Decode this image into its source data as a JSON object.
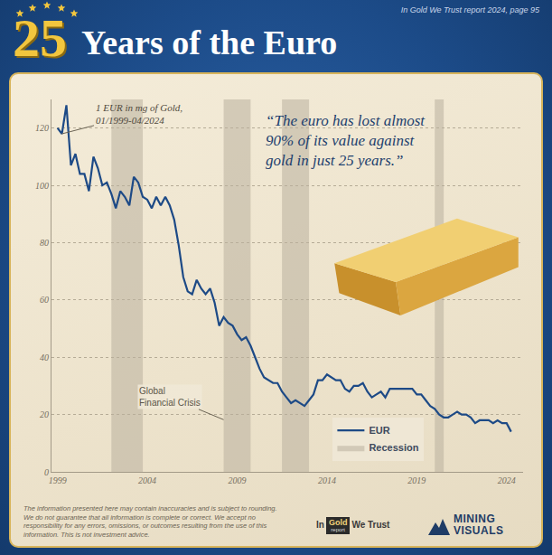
{
  "header": {
    "number": "25",
    "title": "Years of the Euro",
    "source": "In Gold We Trust report 2024, page 95"
  },
  "chart_data": {
    "type": "line",
    "annotations": {
      "series_note": "1 EUR in mg of Gold, 01/1999-04/2024",
      "quote": "“The euro has lost almost 90% of its value against gold in just 25 years.”",
      "event": "Global Financial Crisis"
    },
    "x": [
      "1999-01",
      "1999-04",
      "1999-07",
      "1999-10",
      "2000-01",
      "2000-04",
      "2000-07",
      "2000-10",
      "2001-01",
      "2001-04",
      "2001-07",
      "2001-10",
      "2002-01",
      "2002-04",
      "2002-07",
      "2002-10",
      "2003-01",
      "2003-04",
      "2003-07",
      "2003-10",
      "2004-01",
      "2004-04",
      "2004-07",
      "2004-10",
      "2005-01",
      "2005-04",
      "2005-07",
      "2005-10",
      "2006-01",
      "2006-04",
      "2006-07",
      "2006-10",
      "2007-01",
      "2007-04",
      "2007-07",
      "2007-10",
      "2008-01",
      "2008-04",
      "2008-07",
      "2008-10",
      "2009-01",
      "2009-04",
      "2009-07",
      "2009-10",
      "2010-01",
      "2010-04",
      "2010-07",
      "2010-10",
      "2011-01",
      "2011-04",
      "2011-07",
      "2011-10",
      "2012-01",
      "2012-04",
      "2012-07",
      "2012-10",
      "2013-01",
      "2013-04",
      "2013-07",
      "2013-10",
      "2014-01",
      "2014-04",
      "2014-07",
      "2014-10",
      "2015-01",
      "2015-04",
      "2015-07",
      "2015-10",
      "2016-01",
      "2016-04",
      "2016-07",
      "2016-10",
      "2017-01",
      "2017-04",
      "2017-07",
      "2017-10",
      "2018-01",
      "2018-04",
      "2018-07",
      "2018-10",
      "2019-01",
      "2019-04",
      "2019-07",
      "2019-10",
      "2020-01",
      "2020-04",
      "2020-07",
      "2020-10",
      "2021-01",
      "2021-04",
      "2021-07",
      "2021-10",
      "2022-01",
      "2022-04",
      "2022-07",
      "2022-10",
      "2023-01",
      "2023-04",
      "2023-07",
      "2023-10",
      "2024-01",
      "2024-04"
    ],
    "series": [
      {
        "name": "EUR",
        "color": "#1d4a86",
        "values": [
          120,
          118,
          128,
          107,
          111,
          104,
          104,
          98,
          110,
          106,
          100,
          101,
          97,
          92,
          98,
          96,
          93,
          103,
          101,
          96,
          95,
          92,
          96,
          93,
          96,
          93,
          88,
          79,
          68,
          63,
          62,
          67,
          64,
          62,
          64,
          59,
          51,
          54,
          52,
          51,
          48,
          46,
          47,
          44,
          40,
          36,
          33,
          32,
          31,
          31,
          28,
          26,
          24,
          25,
          24,
          23,
          25,
          27,
          32,
          32,
          34,
          33,
          32,
          32,
          29,
          28,
          30,
          30,
          31,
          28,
          26,
          27,
          28,
          26,
          29,
          29,
          29,
          29,
          29,
          29,
          27,
          27,
          25,
          23,
          22,
          20,
          19,
          19,
          20,
          21,
          20,
          20,
          19,
          17,
          18,
          18,
          18,
          17,
          18,
          17,
          17,
          14
        ]
      }
    ],
    "recessions": {
      "name": "Recession",
      "color": "#b9b09e",
      "periods": [
        {
          "start": "2002-01",
          "end": "2003-10"
        },
        {
          "start": "2008-04",
          "end": "2009-10"
        },
        {
          "start": "2011-07",
          "end": "2013-01"
        },
        {
          "start": "2020-01",
          "end": "2020-07"
        }
      ]
    },
    "xlim": [
      "1998-09",
      "2024-12"
    ],
    "xticks": [
      "1999",
      "2004",
      "2009",
      "2014",
      "2019",
      "2024"
    ],
    "ylim": [
      0,
      130
    ],
    "yticks": [
      0,
      20,
      40,
      60,
      80,
      100,
      120
    ],
    "grid": true,
    "legend": "lower right"
  },
  "footer": {
    "disclaimer": "The information presented here may contain inaccuracies and is subject to rounding. We do not guarantee that all information is complete or correct. We accept no responsibility for any errors, omissions, or outcomes resulting from the use of this information. This is not investment advice.",
    "logos": {
      "igwt": [
        "In",
        "Gold",
        "report",
        "We Trust"
      ],
      "mining_visuals": [
        "MINING",
        "VISUALS"
      ]
    }
  }
}
